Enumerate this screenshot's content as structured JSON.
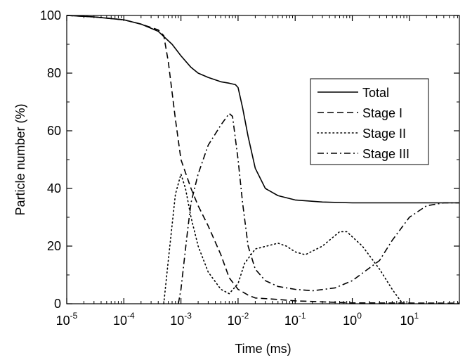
{
  "chart_data": {
    "type": "line",
    "xlabel": "Time (ms)",
    "ylabel": "Particle number (%)",
    "xscale": "log",
    "xlim": [
      1e-05,
      75
    ],
    "ylim": [
      0,
      100
    ],
    "x_ticks": [
      {
        "base": "10",
        "exp": "-5",
        "value": 1e-05
      },
      {
        "base": "10",
        "exp": "-4",
        "value": 0.0001
      },
      {
        "base": "10",
        "exp": "-3",
        "value": 0.001
      },
      {
        "base": "10",
        "exp": "-2",
        "value": 0.01
      },
      {
        "base": "10",
        "exp": "-1",
        "value": 0.1
      },
      {
        "base": "10",
        "exp": "0",
        "value": 1
      },
      {
        "base": "10",
        "exp": "1",
        "value": 10
      }
    ],
    "y_ticks": [
      "0",
      "20",
      "40",
      "60",
      "80",
      "100"
    ],
    "legend_position": "right",
    "series": [
      {
        "name": "Total",
        "style": "solid",
        "points": [
          [
            1e-05,
            100
          ],
          [
            3e-05,
            99.5
          ],
          [
            0.0001,
            98.5
          ],
          [
            0.0002,
            97
          ],
          [
            0.0004,
            94.5
          ],
          [
            0.0007,
            90
          ],
          [
            0.001,
            86
          ],
          [
            0.0015,
            82
          ],
          [
            0.002,
            80
          ],
          [
            0.003,
            78.5
          ],
          [
            0.005,
            77
          ],
          [
            0.007,
            76.5
          ],
          [
            0.009,
            76
          ],
          [
            0.01,
            75
          ],
          [
            0.012,
            68
          ],
          [
            0.015,
            58
          ],
          [
            0.02,
            47
          ],
          [
            0.03,
            40
          ],
          [
            0.05,
            37.5
          ],
          [
            0.1,
            36
          ],
          [
            0.3,
            35.3
          ],
          [
            1,
            35
          ],
          [
            3,
            35
          ],
          [
            10,
            35
          ],
          [
            75,
            35
          ]
        ]
      },
      {
        "name": "Stage I",
        "style": "dashed",
        "points": [
          [
            1e-05,
            100
          ],
          [
            3e-05,
            99.5
          ],
          [
            0.0001,
            98.5
          ],
          [
            0.0002,
            97
          ],
          [
            0.0004,
            95
          ],
          [
            0.0005,
            93
          ],
          [
            0.0006,
            84
          ],
          [
            0.0008,
            64
          ],
          [
            0.001,
            50
          ],
          [
            0.0015,
            40
          ],
          [
            0.002,
            34
          ],
          [
            0.003,
            27
          ],
          [
            0.005,
            17
          ],
          [
            0.007,
            9
          ],
          [
            0.01,
            5
          ],
          [
            0.015,
            3
          ],
          [
            0.02,
            2
          ],
          [
            0.05,
            1.5
          ],
          [
            0.1,
            1
          ],
          [
            0.5,
            0.5
          ],
          [
            1,
            0.3
          ],
          [
            75,
            0.2
          ]
        ]
      },
      {
        "name": "Stage II",
        "style": "dotted",
        "points": [
          [
            0.0005,
            0
          ],
          [
            0.0006,
            15
          ],
          [
            0.0008,
            38
          ],
          [
            0.001,
            45
          ],
          [
            0.0012,
            40
          ],
          [
            0.0015,
            30
          ],
          [
            0.002,
            20
          ],
          [
            0.003,
            11
          ],
          [
            0.005,
            5
          ],
          [
            0.007,
            3.5
          ],
          [
            0.01,
            7
          ],
          [
            0.013,
            14
          ],
          [
            0.02,
            19
          ],
          [
            0.05,
            21
          ],
          [
            0.07,
            20
          ],
          [
            0.1,
            18
          ],
          [
            0.15,
            17
          ],
          [
            0.3,
            20
          ],
          [
            0.6,
            25
          ],
          [
            0.8,
            25
          ],
          [
            1.5,
            20
          ],
          [
            3,
            12
          ],
          [
            5,
            5
          ],
          [
            7,
            1
          ],
          [
            8,
            0
          ]
        ]
      },
      {
        "name": "Stage III",
        "style": "dashdot",
        "points": [
          [
            0.0009,
            0
          ],
          [
            0.001,
            5
          ],
          [
            0.0013,
            25
          ],
          [
            0.0015,
            35
          ],
          [
            0.002,
            45
          ],
          [
            0.003,
            55
          ],
          [
            0.005,
            62
          ],
          [
            0.007,
            66
          ],
          [
            0.008,
            65
          ],
          [
            0.01,
            50
          ],
          [
            0.012,
            35
          ],
          [
            0.015,
            20
          ],
          [
            0.02,
            12
          ],
          [
            0.03,
            8
          ],
          [
            0.05,
            6
          ],
          [
            0.1,
            5
          ],
          [
            0.2,
            4.5
          ],
          [
            0.5,
            5.5
          ],
          [
            1,
            8
          ],
          [
            3,
            15
          ],
          [
            5,
            22
          ],
          [
            10,
            30
          ],
          [
            20,
            34
          ],
          [
            40,
            35
          ],
          [
            75,
            35
          ]
        ]
      }
    ]
  }
}
